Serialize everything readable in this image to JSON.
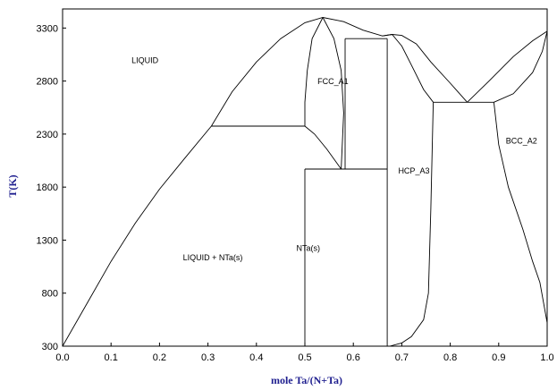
{
  "chart_data": {
    "type": "line",
    "title": "",
    "xlabel": "mole Ta/(N+Ta)",
    "ylabel": "T(K)",
    "xlim": [
      0.0,
      1.0
    ],
    "ylim": [
      300,
      3480
    ],
    "grid": false,
    "legend": "none",
    "x_ticks": [
      "0.0",
      "0.1",
      "0.2",
      "0.3",
      "0.4",
      "0.5",
      "0.6",
      "0.7",
      "0.8",
      "0.9",
      "1.0"
    ],
    "y_ticks": [
      "300",
      "800",
      "1300",
      "1800",
      "2300",
      "2800",
      "3300"
    ],
    "region_labels": [
      {
        "text": "LIQUID",
        "x": 0.17,
        "T": 2970
      },
      {
        "text": "FCC_A1",
        "x": 0.558,
        "T": 2770
      },
      {
        "text": "HCP_A3",
        "x": 0.725,
        "T": 1930
      },
      {
        "text": "BCC_A2",
        "x": 0.947,
        "T": 2210
      },
      {
        "text": "NTa(s)",
        "x": 0.507,
        "T": 1200
      },
      {
        "text": "LIQUID + NTa(s)",
        "x": 0.31,
        "T": 1110
      }
    ],
    "series": [
      {
        "values": [
          [
            0.0,
            300
          ],
          [
            0.05,
            700
          ],
          [
            0.1,
            1100
          ],
          [
            0.15,
            1460
          ],
          [
            0.2,
            1780
          ],
          [
            0.25,
            2060
          ],
          [
            0.307,
            2375
          ]
        ]
      },
      {
        "values": [
          [
            0.307,
            2375
          ],
          [
            0.35,
            2700
          ],
          [
            0.4,
            2980
          ],
          [
            0.45,
            3200
          ],
          [
            0.5,
            3350
          ],
          [
            0.537,
            3400
          ],
          [
            0.58,
            3360
          ],
          [
            0.62,
            3280
          ],
          [
            0.66,
            3225
          ],
          [
            0.68,
            3240
          ]
        ]
      },
      {
        "values": [
          [
            0.307,
            2375
          ],
          [
            0.5,
            2375
          ]
        ]
      },
      {
        "values": [
          [
            0.5,
            2375
          ],
          [
            0.52,
            2300
          ],
          [
            0.545,
            2160
          ],
          [
            0.575,
            1970
          ]
        ]
      },
      {
        "values": [
          [
            0.537,
            3400
          ],
          [
            0.515,
            3200
          ],
          [
            0.505,
            2900
          ],
          [
            0.5,
            2600
          ],
          [
            0.5,
            2375
          ]
        ]
      },
      {
        "values": [
          [
            0.537,
            3400
          ],
          [
            0.56,
            3200
          ],
          [
            0.575,
            2900
          ],
          [
            0.58,
            2500
          ],
          [
            0.575,
            1970
          ]
        ]
      },
      {
        "values": [
          [
            0.5,
            300
          ],
          [
            0.5,
            1970
          ]
        ]
      },
      {
        "values": [
          [
            0.5,
            1970
          ],
          [
            0.67,
            1970
          ]
        ]
      },
      {
        "values": [
          [
            0.583,
            3200
          ],
          [
            0.67,
            3200
          ]
        ]
      },
      {
        "values": [
          [
            0.583,
            3200
          ],
          [
            0.583,
            1970
          ]
        ]
      },
      {
        "values": [
          [
            0.67,
            300
          ],
          [
            0.67,
            3200
          ]
        ]
      },
      {
        "values": [
          [
            0.66,
            3225
          ],
          [
            0.68,
            3240
          ],
          [
            0.7,
            3230
          ],
          [
            0.73,
            3150
          ],
          [
            0.76,
            2980
          ],
          [
            0.8,
            2780
          ],
          [
            0.835,
            2600
          ]
        ]
      },
      {
        "values": [
          [
            0.68,
            3240
          ],
          [
            0.7,
            3130
          ],
          [
            0.72,
            2950
          ],
          [
            0.745,
            2720
          ],
          [
            0.765,
            2600
          ]
        ]
      },
      {
        "values": [
          [
            0.765,
            2600
          ],
          [
            0.89,
            2600
          ]
        ]
      },
      {
        "values": [
          [
            0.835,
            2600
          ],
          [
            0.88,
            2800
          ],
          [
            0.93,
            3030
          ],
          [
            0.97,
            3180
          ],
          [
            1.0,
            3270
          ]
        ]
      },
      {
        "values": [
          [
            0.89,
            2600
          ],
          [
            0.93,
            2680
          ],
          [
            0.97,
            2880
          ],
          [
            0.99,
            3080
          ],
          [
            1.0,
            3270
          ]
        ]
      },
      {
        "values": [
          [
            0.89,
            2600
          ],
          [
            0.9,
            2200
          ],
          [
            0.92,
            1800
          ],
          [
            0.95,
            1400
          ],
          [
            0.97,
            1100
          ],
          [
            0.985,
            900
          ],
          [
            1.0,
            520
          ]
        ]
      },
      {
        "values": [
          [
            0.765,
            2600
          ],
          [
            0.76,
            1600
          ],
          [
            0.755,
            800
          ],
          [
            0.745,
            550
          ],
          [
            0.72,
            390
          ],
          [
            0.7,
            330
          ],
          [
            0.675,
            300
          ]
        ]
      }
    ]
  }
}
